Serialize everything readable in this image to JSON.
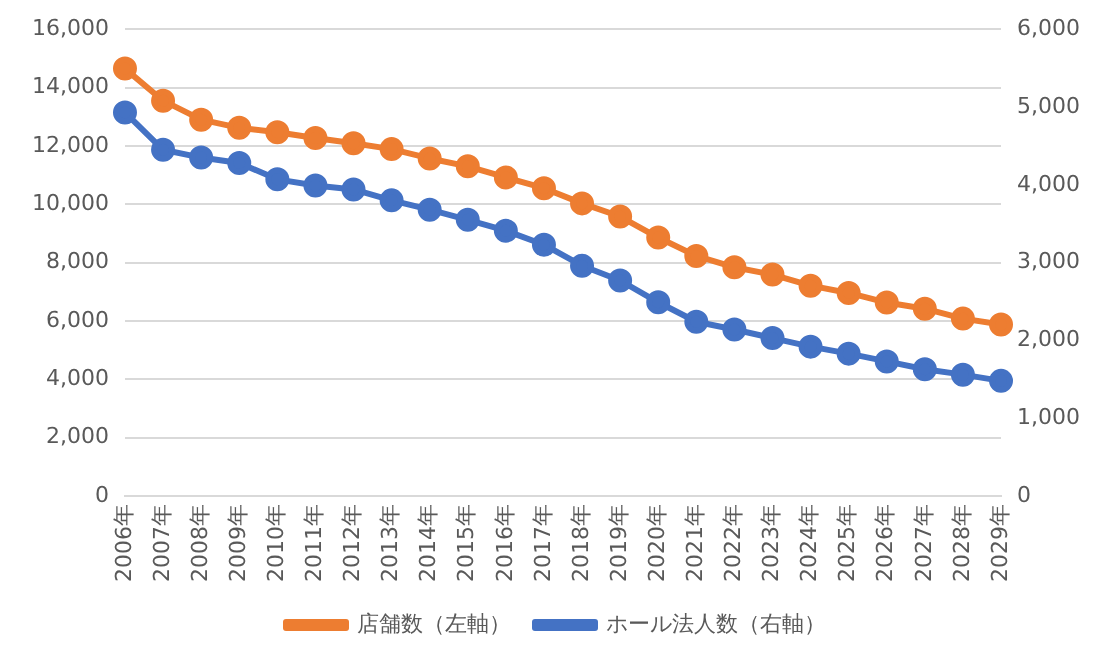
{
  "chart_data": {
    "type": "line",
    "categories": [
      "2006年",
      "2007年",
      "2008年",
      "2009年",
      "2010年",
      "2011年",
      "2012年",
      "2013年",
      "2014年",
      "2015年",
      "2016年",
      "2017年",
      "2018年",
      "2019年",
      "2020年",
      "2021年",
      "2022年",
      "2023年",
      "2024年",
      "2025年",
      "2026年",
      "2027年",
      "2028年",
      "2029年"
    ],
    "series": [
      {
        "name": "店舗数（左軸）",
        "color": "#ed7d31",
        "values": [
          14650,
          13550,
          12900,
          12620,
          12470,
          12270,
          12090,
          11890,
          11570,
          11300,
          10920,
          10550,
          10030,
          9580,
          8860,
          8230,
          7840,
          7590,
          7210,
          6960,
          6630,
          6420,
          6080,
          5880
        ]
      },
      {
        "name": "ホール法人数（右軸）",
        "color": "#4472c4",
        "axis": "y2",
        "values": [
          4930,
          4450,
          4350,
          4280,
          4070,
          3990,
          3940,
          3800,
          3680,
          3550,
          3410,
          3230,
          2960,
          2770,
          2490,
          2240,
          2140,
          2030,
          1920,
          1830,
          1730,
          1630,
          1560,
          1480
        ]
      }
    ],
    "ylim": [
      0,
      16000
    ],
    "yticks": [
      {
        "value": 0,
        "label": "0"
      },
      {
        "value": 2000,
        "label": "2,000"
      },
      {
        "value": 4000,
        "label": "4,000"
      },
      {
        "value": 6000,
        "label": "6,000"
      },
      {
        "value": 8000,
        "label": "8,000"
      },
      {
        "value": 10000,
        "label": "10,000"
      },
      {
        "value": 12000,
        "label": "12,000"
      },
      {
        "value": 14000,
        "label": "14,000"
      },
      {
        "value": 16000,
        "label": "16,000"
      }
    ],
    "y2lim": [
      0,
      6000
    ],
    "y2ticks": [
      {
        "value": 0,
        "label": "0"
      },
      {
        "value": 1000,
        "label": "1,000"
      },
      {
        "value": 2000,
        "label": "2,000"
      },
      {
        "value": 3000,
        "label": "3,000"
      },
      {
        "value": 4000,
        "label": "4,000"
      },
      {
        "value": 5000,
        "label": "5,000"
      },
      {
        "value": 6000,
        "label": "6,000"
      }
    ],
    "grid": "y",
    "legend": "bottom",
    "marker": "circle",
    "line_style": "solid"
  }
}
